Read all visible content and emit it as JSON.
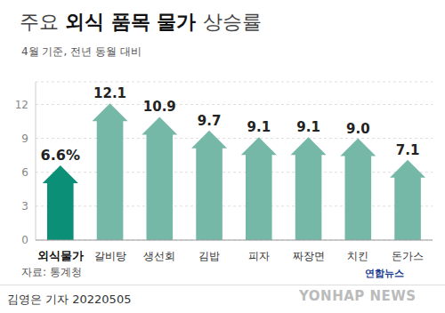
{
  "chart_data": {
    "type": "bar",
    "title": "주요 외식 품목 물가 상승률",
    "subtitle": "4월 기준, 전년 동월 대비",
    "categories": [
      "외식물가",
      "갈비탕",
      "생선회",
      "김밥",
      "피자",
      "짜장면",
      "치킨",
      "돈가스"
    ],
    "values": [
      6.6,
      12.1,
      10.9,
      9.7,
      9.1,
      9.1,
      9.0,
      7.1
    ],
    "value_labels": [
      "6.6%",
      "12.1",
      "10.9",
      "9.7",
      "9.1",
      "9.1",
      "9.0",
      "7.1"
    ],
    "data_labels": true,
    "colors": [
      "#0b8f77",
      "#76b8a8",
      "#76b8a8",
      "#76b8a8",
      "#76b8a8",
      "#76b8a8",
      "#76b8a8",
      "#76b8a8"
    ],
    "ylim": [
      0,
      14
    ],
    "yticks": [
      0,
      3,
      6,
      9,
      12
    ],
    "grid": true,
    "annotations": [
      "자료: 통계청",
      "김영은 기자 20220505",
      "연합뉴스",
      "YONHAP NEWS"
    ]
  }
}
